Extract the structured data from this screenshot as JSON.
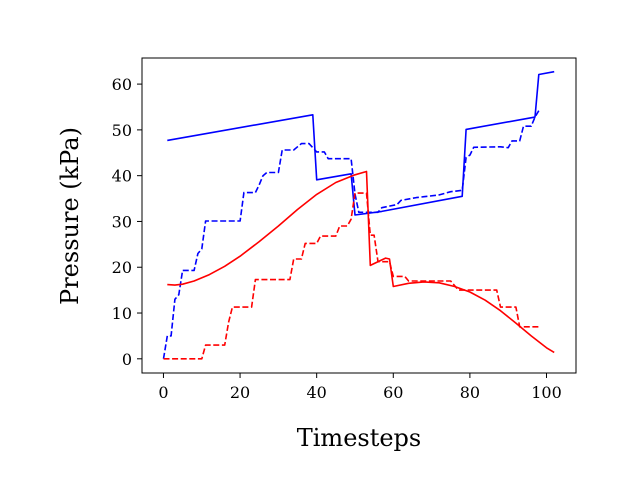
{
  "chart_data": {
    "type": "line",
    "title": "",
    "xlabel": "Timesteps",
    "ylabel": "Pressure (kPa)",
    "xlim": [
      -5.6,
      107.7
    ],
    "ylim": [
      -3.1,
      65.7
    ],
    "xticks": [
      0,
      20,
      40,
      60,
      80,
      100
    ],
    "yticks": [
      0,
      10,
      20,
      30,
      40,
      50,
      60
    ],
    "grid": false,
    "legend": "none",
    "series": [
      {
        "color": "#0000ff",
        "style": "solid",
        "points": [
          [
            1,
            47.7
          ],
          [
            39,
            53.3
          ],
          [
            40,
            39.1
          ],
          [
            49,
            40.4
          ],
          [
            50,
            31.4
          ],
          [
            57,
            32.2
          ],
          [
            78,
            35.5
          ],
          [
            79,
            50.1
          ],
          [
            97,
            52.8
          ],
          [
            98,
            62.1
          ],
          [
            102,
            62.7
          ]
        ]
      },
      {
        "color": "#0000ff",
        "style": "dashed",
        "points": [
          [
            0,
            0
          ],
          [
            1,
            5
          ],
          [
            2,
            5
          ],
          [
            3,
            13
          ],
          [
            4,
            14
          ],
          [
            5,
            19.3
          ],
          [
            8,
            19.3
          ],
          [
            9,
            23
          ],
          [
            10,
            24
          ],
          [
            11,
            30.1
          ],
          [
            20,
            30.1
          ],
          [
            21,
            36.3
          ],
          [
            24,
            36.3
          ],
          [
            25,
            38
          ],
          [
            26,
            40
          ],
          [
            27,
            40.7
          ],
          [
            30,
            40.7
          ],
          [
            31,
            45.6
          ],
          [
            34,
            45.6
          ],
          [
            35,
            46.3
          ],
          [
            36,
            47
          ],
          [
            38,
            47
          ],
          [
            40,
            45.2
          ],
          [
            42,
            45.2
          ],
          [
            43,
            43.7
          ],
          [
            49,
            43.7
          ],
          [
            50,
            36
          ],
          [
            51,
            32
          ],
          [
            56,
            32
          ],
          [
            57,
            33
          ],
          [
            61,
            33.7
          ],
          [
            62,
            34.6
          ],
          [
            66,
            35.2
          ],
          [
            68,
            35.4
          ],
          [
            72,
            35.8
          ],
          [
            75,
            36.5
          ],
          [
            78,
            36.8
          ],
          [
            79,
            44
          ],
          [
            80,
            44.5
          ],
          [
            81,
            46.2
          ],
          [
            88,
            46.3
          ],
          [
            90,
            46.1
          ],
          [
            91,
            47.6
          ],
          [
            93,
            47.6
          ],
          [
            94,
            50.8
          ],
          [
            96,
            50.8
          ],
          [
            97,
            52.8
          ],
          [
            98,
            54.2
          ]
        ]
      },
      {
        "color": "#ff0000",
        "style": "solid",
        "points": [
          [
            1,
            16.2
          ],
          [
            3,
            16.1
          ],
          [
            5,
            16.3
          ],
          [
            8,
            17
          ],
          [
            12,
            18.4
          ],
          [
            16,
            20.2
          ],
          [
            20,
            22.4
          ],
          [
            25,
            25.6
          ],
          [
            30,
            29
          ],
          [
            35,
            32.6
          ],
          [
            40,
            35.9
          ],
          [
            45,
            38.5
          ],
          [
            50,
            40.2
          ],
          [
            53,
            40.9
          ],
          [
            54,
            20.4
          ],
          [
            58,
            22
          ],
          [
            59,
            21.8
          ],
          [
            60,
            15.8
          ],
          [
            64,
            16.5
          ],
          [
            68,
            16.8
          ],
          [
            72,
            16.6
          ],
          [
            76,
            15.8
          ],
          [
            80,
            14.6
          ],
          [
            84,
            12.8
          ],
          [
            88,
            10.5
          ],
          [
            92,
            7.8
          ],
          [
            96,
            5
          ],
          [
            100,
            2.4
          ],
          [
            102,
            1.4
          ]
        ]
      },
      {
        "color": "#ff0000",
        "style": "dashed",
        "points": [
          [
            0,
            0
          ],
          [
            10,
            0
          ],
          [
            11,
            3
          ],
          [
            16,
            3
          ],
          [
            17,
            8
          ],
          [
            18,
            11.3
          ],
          [
            23,
            11.3
          ],
          [
            24,
            17.3
          ],
          [
            33,
            17.3
          ],
          [
            34,
            21.8
          ],
          [
            36,
            21.8
          ],
          [
            37,
            25.2
          ],
          [
            40,
            25.2
          ],
          [
            41,
            26.8
          ],
          [
            45,
            26.8
          ],
          [
            46,
            29
          ],
          [
            48,
            29
          ],
          [
            49,
            30.5
          ],
          [
            50,
            36.2
          ],
          [
            53,
            36.2
          ],
          [
            54,
            27
          ],
          [
            55,
            27
          ],
          [
            56,
            21.2
          ],
          [
            59,
            21.2
          ],
          [
            60,
            18
          ],
          [
            63,
            18
          ],
          [
            64,
            17
          ],
          [
            75,
            17
          ],
          [
            77,
            15
          ],
          [
            87,
            15
          ],
          [
            88,
            11.3
          ],
          [
            92,
            11.3
          ],
          [
            93,
            7
          ],
          [
            98,
            7
          ]
        ]
      }
    ]
  }
}
